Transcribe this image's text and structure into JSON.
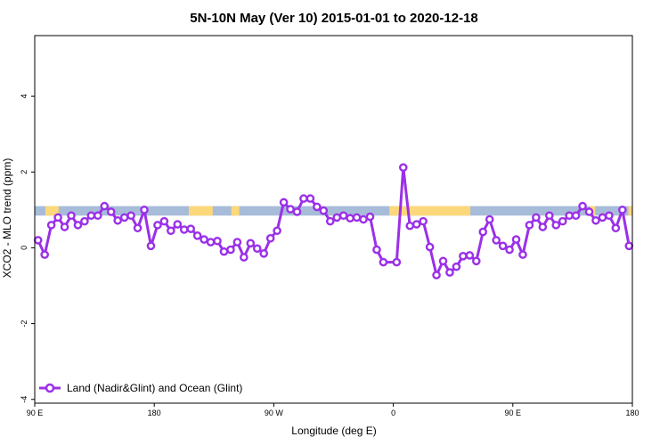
{
  "chart_data": {
    "type": "line",
    "title": "5N-10N May (Ver 10)   2015-01-01 to 2020-12-18",
    "xlabel": "Longitude (deg E)",
    "ylabel": "XCO2 - MLO trend (ppm)",
    "x_tick_labels": [
      "90 E",
      "180",
      "90 W",
      "0",
      "90 E",
      "180"
    ],
    "x_ticks": [
      90,
      180,
      270,
      360,
      450,
      540
    ],
    "xlim": [
      90,
      540
    ],
    "y_ticks": [
      -4,
      -2,
      0,
      2,
      4
    ],
    "y_tick_labels": [
      "-4",
      "-2",
      "0",
      "2",
      "4"
    ],
    "ylim": [
      -4.1,
      5.6
    ],
    "grid": false,
    "legend_position": "bottom-left",
    "colors": {
      "series": "#9b30e8",
      "ocean": "#a7bcd9",
      "land": "#fcd87a"
    },
    "surface_band": {
      "y_range": [
        0.85,
        1.1
      ],
      "land_x_ranges": [
        [
          98,
          108
        ],
        [
          206,
          224
        ],
        [
          238,
          244
        ],
        [
          357,
          418
        ],
        [
          508,
          512
        ],
        [
          537,
          540
        ]
      ]
    },
    "series": [
      {
        "name": "Land (Nadir&Glint) and Ocean (Glint)",
        "x": [
          92.5,
          97.5,
          102.5,
          107.5,
          112.5,
          117.5,
          122.5,
          127.5,
          132.5,
          137.5,
          142.5,
          147.5,
          152.5,
          157.5,
          162.5,
          167.5,
          172.5,
          177.5,
          182.5,
          187.5,
          192.5,
          197.5,
          202.5,
          207.5,
          212.5,
          217.5,
          222.5,
          227.5,
          232.5,
          237.5,
          242.5,
          247.5,
          252.5,
          257.5,
          262.5,
          267.5,
          272.5,
          277.5,
          282.5,
          287.5,
          292.5,
          297.5,
          302.5,
          307.5,
          312.5,
          317.5,
          322.5,
          327.5,
          332.5,
          337.5,
          342.5,
          347.5,
          352.5,
          362.5,
          367.5,
          372.5,
          377.5,
          382.5,
          387.5,
          392.5,
          397.5,
          402.5,
          407.5,
          412.5,
          417.5,
          422.5,
          427.5,
          432.5,
          437.5,
          442.5,
          447.5,
          452.5,
          457.5,
          462.5,
          467.5,
          472.5,
          477.5,
          482.5,
          487.5,
          492.5,
          497.5,
          502.5,
          507.5,
          512.5,
          517.5,
          522.5,
          527.5,
          532.5,
          537.5
        ],
        "values": [
          0.2,
          -0.18,
          0.6,
          0.8,
          0.55,
          0.85,
          0.6,
          0.7,
          0.85,
          0.85,
          1.1,
          0.95,
          0.72,
          0.8,
          0.85,
          0.52,
          1.0,
          0.05,
          0.6,
          0.7,
          0.45,
          0.62,
          0.48,
          0.5,
          0.32,
          0.22,
          0.15,
          0.18,
          -0.1,
          -0.05,
          0.15,
          -0.25,
          0.12,
          -0.02,
          -0.15,
          0.25,
          0.45,
          1.2,
          1.02,
          0.95,
          1.3,
          1.3,
          1.08,
          0.98,
          0.7,
          0.8,
          0.85,
          0.78,
          0.8,
          0.75,
          0.82,
          -0.05,
          -0.38,
          -0.38,
          2.12,
          0.58,
          0.62,
          0.7,
          0.02,
          -0.72,
          -0.35,
          -0.65,
          -0.5,
          -0.22,
          -0.2,
          -0.35,
          0.42,
          0.75,
          0.2,
          0.05,
          -0.05,
          0.22,
          -0.18,
          0.6,
          0.8,
          0.55,
          0.85,
          0.6,
          0.7,
          0.85,
          0.85,
          1.1,
          0.95,
          0.72,
          0.8,
          0.85,
          0.52,
          1.0,
          0.05
        ]
      }
    ]
  }
}
